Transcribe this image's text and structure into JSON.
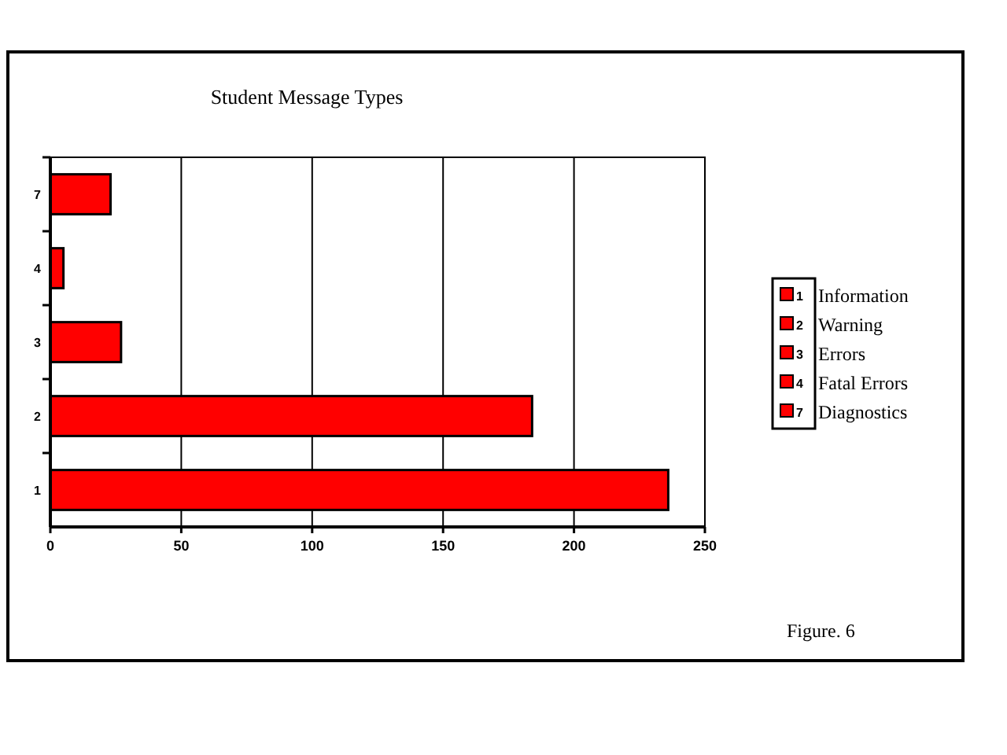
{
  "chart_data": {
    "type": "bar",
    "orientation": "horizontal",
    "stacked": true,
    "title": "Student Message Types",
    "categories": [
      "7",
      "4",
      "3",
      "2",
      "1"
    ],
    "series": [
      {
        "name": "Information",
        "color": "#ff0000",
        "values": [
          null,
          null,
          null,
          null,
          236
        ]
      },
      {
        "name": "Warning",
        "color": "#ff0000",
        "values": [
          null,
          null,
          null,
          184,
          null
        ]
      },
      {
        "name": "Errors",
        "color": "#ff0000",
        "values": [
          null,
          null,
          27,
          null,
          null
        ]
      },
      {
        "name": "Fatal Errors",
        "color": "#ff0000",
        "values": [
          null,
          5,
          null,
          null,
          null
        ]
      },
      {
        "name": "Diagnostics",
        "color": "#ff0000",
        "values": [
          23,
          null,
          null,
          null,
          null
        ]
      }
    ],
    "xlim": [
      0,
      250
    ],
    "xticks": [
      0,
      50,
      100,
      150,
      200,
      250
    ],
    "grid": "x",
    "legend": "right",
    "annotations": [
      "Figure. 6"
    ]
  }
}
